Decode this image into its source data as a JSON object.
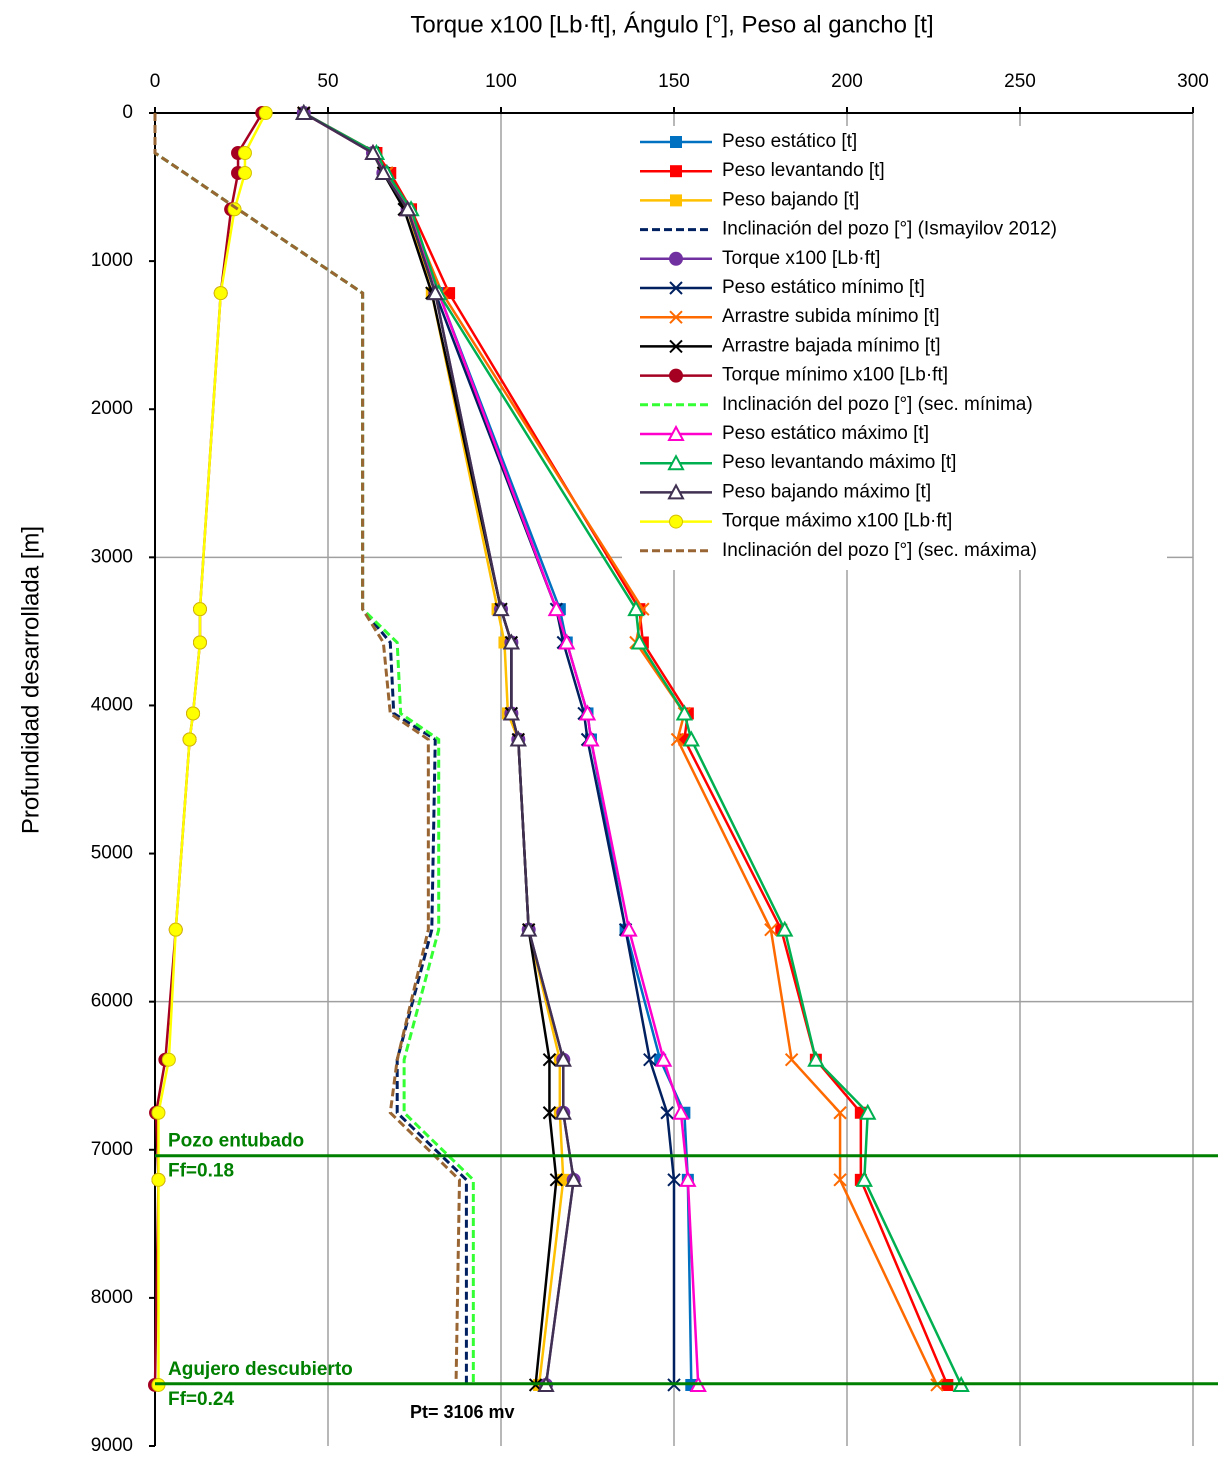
{
  "chart_data": {
    "type": "line",
    "title": "Torque x100 [Lb·ft], Ángulo [°], Peso al gancho [t]",
    "y_label": "Profundidad desarrollada [m]",
    "xlim": [
      0,
      300
    ],
    "xticks": [
      0,
      50,
      100,
      150,
      200,
      250,
      300
    ],
    "ylim": [
      0,
      9000
    ],
    "yticks": [
      0,
      1000,
      2000,
      3000,
      4000,
      5000,
      6000,
      7000,
      8000,
      9000
    ],
    "y_reversed": true,
    "x_axis_position": "top",
    "grid": true,
    "legend_position": "upper right",
    "depth": [
      0,
      270,
      405,
      650,
      1216,
      3350,
      3575,
      4054,
      4230,
      5514,
      6392,
      6750,
      7203,
      8588
    ],
    "series": [
      {
        "name": "Peso estático [t]",
        "color": "#0070c0",
        "marker": "square",
        "dash": false,
        "values": [
          43,
          63,
          67,
          73,
          82,
          117,
          119,
          125,
          126,
          136,
          146,
          153,
          154,
          155
        ]
      },
      {
        "name": "Peso levantando [t]",
        "color": "#ff0000",
        "marker": "square",
        "dash": false,
        "values": [
          43,
          64,
          68,
          74,
          85,
          140,
          141,
          154,
          153,
          181,
          191,
          204,
          204,
          229
        ]
      },
      {
        "name": "Peso bajando [t]",
        "color": "#ffc000",
        "marker": "square",
        "dash": false,
        "values": [
          43,
          63,
          66,
          73,
          80,
          99,
          101,
          102,
          105,
          108,
          117,
          117,
          118,
          111
        ]
      },
      {
        "name": "Inclinación del pozo [°] (Ismayilov  2012)",
        "color": "#002060",
        "marker": "none",
        "dash": true,
        "values": [
          0,
          0,
          8.6,
          24,
          60,
          60,
          68,
          69,
          81,
          80,
          70,
          70,
          90,
          90
        ]
      },
      {
        "name": "Torque x100 [Lb·ft]",
        "color": "#7030a0",
        "marker": "circle",
        "dash": false,
        "values": [
          43,
          63,
          66,
          73,
          81,
          100,
          103,
          103,
          105,
          108,
          118,
          118,
          121,
          113
        ]
      },
      {
        "name": "Peso estático mínimo [t]",
        "color": "#002060",
        "marker": "x",
        "dash": false,
        "values": [
          43,
          63,
          67,
          73,
          81,
          116,
          118,
          124,
          125,
          136,
          143,
          148,
          150,
          150
        ]
      },
      {
        "name": "Arrastre subida mínimo [t]",
        "color": "#ff6a00",
        "marker": "x",
        "dash": false,
        "values": [
          43,
          63,
          67,
          73,
          83,
          141,
          139,
          153,
          151,
          178,
          184,
          198,
          198,
          226
        ]
      },
      {
        "name": "Arrastre bajada mínimo [t]",
        "color": "#000000",
        "marker": "x",
        "dash": false,
        "values": [
          43,
          63,
          66,
          72,
          80,
          100,
          103,
          103,
          105,
          108,
          114,
          114,
          116,
          110
        ]
      },
      {
        "name": "Torque mínimo x100 [Lb·ft]",
        "color": "#a50021",
        "marker": "circle",
        "dash": false,
        "values": [
          31,
          24,
          24,
          22,
          19,
          13,
          13,
          11,
          10,
          6,
          3,
          0.3,
          1,
          0
        ]
      },
      {
        "name": "Inclinación del pozo [°] (sec. mínima)",
        "color": "#33ff33",
        "marker": "none",
        "dash": true,
        "values": [
          0,
          0,
          8.6,
          24,
          60,
          60,
          70,
          71,
          82,
          82,
          72,
          72,
          92,
          92
        ]
      },
      {
        "name": "Peso estático máximo [t]",
        "color": "#ff00cc",
        "marker": "triangle",
        "dash": false,
        "values": [
          43,
          63,
          67,
          73,
          82,
          116,
          119,
          125,
          126,
          137,
          147,
          152,
          154,
          157
        ]
      },
      {
        "name": "Peso levantando máximo [t]",
        "color": "#00b050",
        "marker": "triangle",
        "dash": false,
        "values": [
          43,
          64,
          67,
          74,
          82,
          139,
          140,
          153,
          155,
          182,
          191,
          206,
          205,
          233
        ]
      },
      {
        "name": "Peso bajando máximo [t]",
        "color": "#403152",
        "marker": "triangle",
        "dash": false,
        "values": [
          43,
          63,
          66,
          73,
          81,
          100,
          103,
          103,
          105,
          108,
          118,
          118,
          121,
          113
        ]
      },
      {
        "name": "Torque máximo x100 [Lb·ft]",
        "color": "#ffff00",
        "marker": "circle",
        "dash": false,
        "values": [
          32,
          26,
          26,
          23,
          19,
          13,
          13,
          11,
          10,
          6,
          4,
          1,
          1,
          1
        ]
      },
      {
        "name": "Inclinación del pozo [°] (sec. máxima)",
        "color": "#996633",
        "marker": "none",
        "dash": true,
        "values": [
          0,
          0,
          8.6,
          24,
          60,
          60,
          66,
          68,
          79,
          79,
          70,
          68,
          88,
          87
        ]
      }
    ],
    "hlines": [
      {
        "depth": 7040,
        "color": "#008000",
        "label": "Pozo entubado",
        "sublabel": "Ff=0.18"
      },
      {
        "depth": 8580,
        "color": "#008000",
        "label": "Agujero descubierto",
        "sublabel": "Ff=0.24"
      }
    ],
    "annotation": "Pt= 3106 mv"
  }
}
